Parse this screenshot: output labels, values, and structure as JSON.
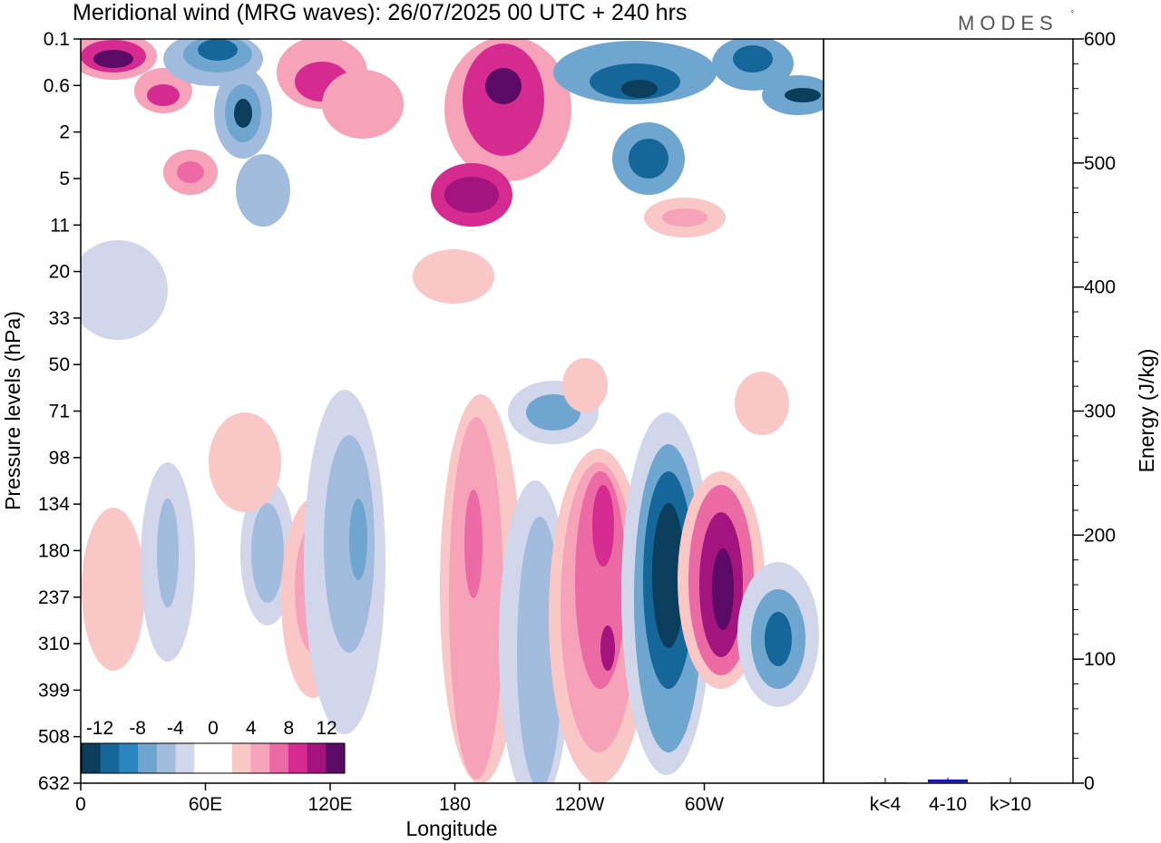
{
  "title": "Meridional wind (MRG waves):  26/07/2025  00 UTC  + 240 hrs",
  "brand": "MODES",
  "brand_mark": "°",
  "chart_data": [
    {
      "type": "heatmap",
      "title": "Meridional wind (MRG waves)",
      "xlabel": "Longitude",
      "ylabel": "Pressure levels (hPa)",
      "x_ticks": [
        "0",
        "60E",
        "120E",
        "180",
        "120W",
        "60W"
      ],
      "y_ticks": [
        "0.1",
        "0.6",
        "2",
        "5",
        "11",
        "20",
        "33",
        "50",
        "71",
        "98",
        "134",
        "180",
        "237",
        "310",
        "399",
        "508",
        "632"
      ],
      "colorbar": {
        "labels": [
          "-12",
          "-8",
          "-4",
          "0",
          "4",
          "8",
          "12"
        ],
        "colors": [
          "#0b3d5c",
          "#15679a",
          "#2b86c0",
          "#6fa6cf",
          "#a2bcdd",
          "#d2d6ea",
          "#ffffff",
          "#ffffff",
          "#f8c7c6",
          "#f6a2b9",
          "#ec6aa3",
          "#d52b90",
          "#a3147f",
          "#5b0a66"
        ]
      }
    },
    {
      "type": "bar",
      "ylabel": "Energy (J/kg)",
      "ylim": [
        0,
        600
      ],
      "y_ticks": [
        "0",
        "100",
        "200",
        "300",
        "400",
        "500",
        "600"
      ],
      "categories": [
        "k<4",
        "4-10",
        "k>10"
      ],
      "values": [
        0.5,
        3,
        0.5
      ],
      "bar_color": "#1a1aa6"
    }
  ]
}
